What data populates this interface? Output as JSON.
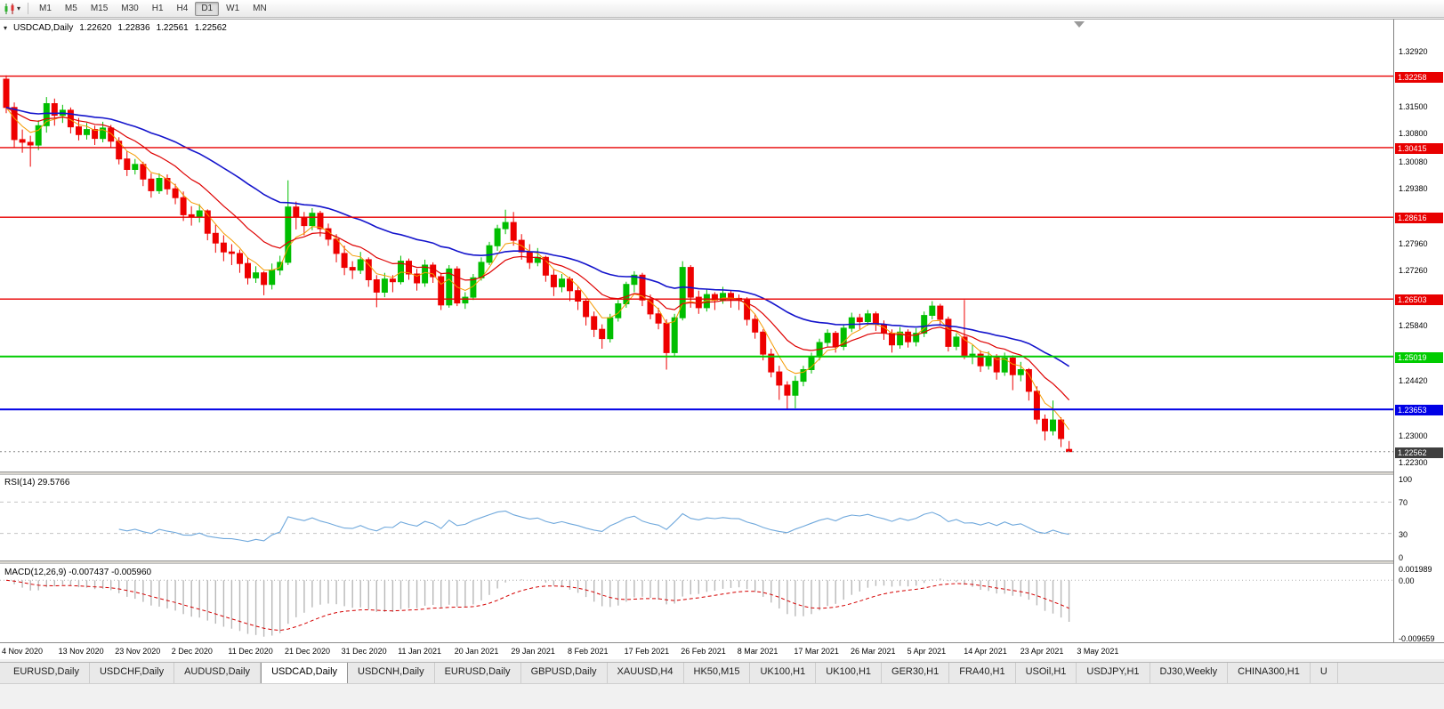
{
  "toolbar": {
    "timeframes": [
      "M1",
      "M5",
      "M15",
      "M30",
      "H1",
      "H4",
      "D1",
      "W1",
      "MN"
    ],
    "active_timeframe": "D1"
  },
  "chart": {
    "symbol": "USDCAD,Daily",
    "ohlc": {
      "open": "1.22620",
      "high": "1.22836",
      "low": "1.22561",
      "close": "1.22562"
    },
    "price_axis": {
      "labels": [
        "1.32920",
        "1.31500",
        "1.30800",
        "1.30080",
        "1.29380",
        "1.27960",
        "1.27260",
        "1.25840",
        "1.24420",
        "1.23000",
        "1.22300"
      ]
    },
    "hlines": [
      {
        "price": 1.32258,
        "label": "1.32258",
        "color": "#E80000",
        "width": 1.4
      },
      {
        "price": 1.30415,
        "label": "1.30415",
        "color": "#E80000",
        "width": 1.4
      },
      {
        "price": 1.28616,
        "label": "1.28616",
        "color": "#E80000",
        "width": 1.4
      },
      {
        "price": 1.26503,
        "label": "1.26503",
        "color": "#E80000",
        "width": 1.4
      },
      {
        "price": 1.25019,
        "label": "1.25019",
        "color": "#00CC00",
        "width": 2
      },
      {
        "price": 1.23653,
        "label": "1.23653",
        "color": "#0000E6",
        "width": 2
      }
    ],
    "current_price": {
      "value": 1.22562,
      "label": "1.22562",
      "color": "#3F3F3F"
    }
  },
  "indicators": {
    "rsi": {
      "label": "RSI(14) 29.5766",
      "period": 14,
      "last": 29.5766,
      "levels": [
        70,
        30
      ],
      "color": "#6FA8DC",
      "scale": [
        {
          "label": "100",
          "value": 100
        },
        {
          "label": "70",
          "value": 70
        },
        {
          "label": "30",
          "value": 30
        },
        {
          "label": "0",
          "value": 0
        }
      ]
    },
    "macd": {
      "label": "MACD(12,26,9) -0.007437 -0.005960",
      "fast": 12,
      "slow": 26,
      "signal_period": 9,
      "last_main": -0.007437,
      "last_signal": -0.00596,
      "signal_color": "#D40000",
      "hist_color": "#B8B8B8",
      "range": {
        "max": 0.001989,
        "min": -0.009659
      },
      "scale": [
        {
          "label": "0.001989",
          "value": 0.001989
        },
        {
          "label": "0.00",
          "value": 0
        },
        {
          "label": "-0.009659",
          "value": -0.009659
        }
      ]
    }
  },
  "time_axis": {
    "labels": [
      "4 Nov 2020",
      "13 Nov 2020",
      "23 Nov 2020",
      "2 Dec 2020",
      "11 Dec 2020",
      "21 Dec 2020",
      "31 Dec 2020",
      "11 Jan 2021",
      "20 Jan 2021",
      "29 Jan 2021",
      "8 Feb 2021",
      "17 Feb 2021",
      "26 Feb 2021",
      "8 Mar 2021",
      "17 Mar 2021",
      "26 Mar 2021",
      "5 Apr 2021",
      "14 Apr 2021",
      "23 Apr 2021",
      "3 May 2021"
    ]
  },
  "tabs": {
    "items": [
      "EURUSD,Daily",
      "USDCHF,Daily",
      "AUDUSD,Daily",
      "USDCAD,Daily",
      "USDCNH,Daily",
      "EURUSD,Daily",
      "GBPUSD,Daily",
      "XAUUSD,H4",
      "HK50,M15",
      "UK100,H1",
      "UK100,H1",
      "GER30,H1",
      "FRA40,H1",
      "USOil,H1",
      "USDJPY,H1",
      "DJ30,Weekly",
      "CHINA300,H1",
      "U"
    ],
    "active": "USDCAD,Daily"
  },
  "chart_data": {
    "type": "candlestick",
    "symbol": "USDCAD",
    "timeframe": "Daily",
    "view": {
      "price_min": 1.2205,
      "price_max": 1.3372
    },
    "colors": {
      "up": "#00BE00",
      "down": "#EE0000"
    },
    "moving_averages": [
      {
        "type": "ema",
        "period": 5,
        "color": "#F59A00",
        "width": 1
      },
      {
        "type": "ema",
        "period": 13,
        "color": "#DE0000",
        "width": 1.2
      },
      {
        "type": "ema",
        "period": 34,
        "color": "#1414CC",
        "width": 1.6
      }
    ],
    "ohlc": [
      [
        1.3218,
        1.3228,
        1.313,
        1.3145
      ],
      [
        1.3145,
        1.3158,
        1.3042,
        1.3062
      ],
      [
        1.3062,
        1.3088,
        1.3028,
        1.3055
      ],
      [
        1.3055,
        1.3072,
        1.2992,
        1.3048
      ],
      [
        1.3048,
        1.3112,
        1.3035,
        1.3098
      ],
      [
        1.3098,
        1.3172,
        1.308,
        1.3155
      ],
      [
        1.3155,
        1.3168,
        1.3098,
        1.3125
      ],
      [
        1.3125,
        1.3152,
        1.3105,
        1.3138
      ],
      [
        1.3138,
        1.3145,
        1.3078,
        1.3095
      ],
      [
        1.3095,
        1.3118,
        1.306,
        1.3075
      ],
      [
        1.3075,
        1.3105,
        1.3062,
        1.3088
      ],
      [
        1.3088,
        1.3098,
        1.3048,
        1.3065
      ],
      [
        1.3065,
        1.3108,
        1.3055,
        1.3092
      ],
      [
        1.3092,
        1.31,
        1.3042,
        1.3058
      ],
      [
        1.3058,
        1.3068,
        1.2998,
        1.3012
      ],
      [
        1.3012,
        1.3032,
        1.2968,
        1.2985
      ],
      [
        1.2985,
        1.3012,
        1.2972,
        1.2998
      ],
      [
        1.2998,
        1.3005,
        1.2942,
        1.296
      ],
      [
        1.296,
        1.2975,
        1.2912,
        1.293
      ],
      [
        1.293,
        1.2975,
        1.2922,
        1.2962
      ],
      [
        1.2962,
        1.2972,
        1.292,
        1.2935
      ],
      [
        1.2935,
        1.2948,
        1.2895,
        1.2912
      ],
      [
        1.2912,
        1.2928,
        1.2852,
        1.2868
      ],
      [
        1.2868,
        1.289,
        1.284,
        1.2862
      ],
      [
        1.2862,
        1.2895,
        1.2848,
        1.2878
      ],
      [
        1.2878,
        1.2882,
        1.2802,
        1.282
      ],
      [
        1.282,
        1.2842,
        1.277,
        1.2795
      ],
      [
        1.2795,
        1.2815,
        1.2748,
        1.2772
      ],
      [
        1.2772,
        1.2792,
        1.2738,
        1.2768
      ],
      [
        1.2768,
        1.2778,
        1.2718,
        1.2742
      ],
      [
        1.2742,
        1.2758,
        1.2688,
        1.2705
      ],
      [
        1.2705,
        1.2735,
        1.2692,
        1.2718
      ],
      [
        1.2718,
        1.2722,
        1.266,
        1.2688
      ],
      [
        1.2688,
        1.2742,
        1.2675,
        1.2725
      ],
      [
        1.2725,
        1.2762,
        1.2712,
        1.2745
      ],
      [
        1.2745,
        1.2957,
        1.2738,
        1.2888
      ],
      [
        1.2888,
        1.2902,
        1.283,
        1.2862
      ],
      [
        1.2862,
        1.2875,
        1.2815,
        1.284
      ],
      [
        1.284,
        1.2885,
        1.2828,
        1.2872
      ],
      [
        1.2872,
        1.2878,
        1.2812,
        1.2832
      ],
      [
        1.2832,
        1.2845,
        1.2788,
        1.2805
      ],
      [
        1.2805,
        1.2818,
        1.2745,
        1.2768
      ],
      [
        1.2768,
        1.2788,
        1.2712,
        1.2732
      ],
      [
        1.2732,
        1.2748,
        1.2702,
        1.2725
      ],
      [
        1.2725,
        1.2772,
        1.2715,
        1.2752
      ],
      [
        1.2752,
        1.2758,
        1.2682,
        1.27
      ],
      [
        1.27,
        1.2712,
        1.2629,
        1.2668
      ],
      [
        1.2668,
        1.2718,
        1.2655,
        1.2702
      ],
      [
        1.2702,
        1.2712,
        1.2668,
        1.2695
      ],
      [
        1.2695,
        1.2762,
        1.2688,
        1.2748
      ],
      [
        1.2748,
        1.2755,
        1.27,
        1.2715
      ],
      [
        1.2715,
        1.2728,
        1.2672,
        1.2692
      ],
      [
        1.2692,
        1.2752,
        1.2682,
        1.2738
      ],
      [
        1.2738,
        1.2745,
        1.2692,
        1.2708
      ],
      [
        1.2708,
        1.2718,
        1.2622,
        1.2635
      ],
      [
        1.2635,
        1.2738,
        1.2628,
        1.2728
      ],
      [
        1.2728,
        1.2735,
        1.2632,
        1.264
      ],
      [
        1.264,
        1.2668,
        1.2625,
        1.2655
      ],
      [
        1.2655,
        1.2715,
        1.2648,
        1.2705
      ],
      [
        1.2705,
        1.2758,
        1.2698,
        1.2745
      ],
      [
        1.2745,
        1.2798,
        1.2738,
        1.2788
      ],
      [
        1.2788,
        1.2842,
        1.2775,
        1.2832
      ],
      [
        1.2832,
        1.2881,
        1.2818,
        1.2848
      ],
      [
        1.2848,
        1.2875,
        1.2788,
        1.2802
      ],
      [
        1.2802,
        1.2818,
        1.2752,
        1.2772
      ],
      [
        1.2772,
        1.2792,
        1.2728,
        1.2745
      ],
      [
        1.2745,
        1.2782,
        1.2735,
        1.2758
      ],
      [
        1.2758,
        1.2762,
        1.2695,
        1.2712
      ],
      [
        1.2712,
        1.2728,
        1.2658,
        1.2682
      ],
      [
        1.2682,
        1.2715,
        1.2668,
        1.2702
      ],
      [
        1.2702,
        1.2708,
        1.2645,
        1.2672
      ],
      [
        1.2672,
        1.2682,
        1.2622,
        1.2645
      ],
      [
        1.2645,
        1.2652,
        1.2582,
        1.2605
      ],
      [
        1.2605,
        1.2618,
        1.2552,
        1.2572
      ],
      [
        1.2572,
        1.2585,
        1.2522,
        1.2548
      ],
      [
        1.2548,
        1.2612,
        1.2538,
        1.2602
      ],
      [
        1.2602,
        1.2648,
        1.2592,
        1.2638
      ],
      [
        1.2638,
        1.2695,
        1.2628,
        1.2688
      ],
      [
        1.2688,
        1.2722,
        1.2668,
        1.2712
      ],
      [
        1.2712,
        1.2718,
        1.2632,
        1.2648
      ],
      [
        1.2648,
        1.2662,
        1.2598,
        1.2612
      ],
      [
        1.2612,
        1.2628,
        1.2572,
        1.2588
      ],
      [
        1.2588,
        1.2598,
        1.2468,
        1.2512
      ],
      [
        1.2512,
        1.2612,
        1.2502,
        1.2602
      ],
      [
        1.2602,
        1.2748,
        1.2595,
        1.2732
      ],
      [
        1.2732,
        1.2738,
        1.2628,
        1.2655
      ],
      [
        1.2655,
        1.2672,
        1.2612,
        1.2628
      ],
      [
        1.2628,
        1.2675,
        1.2618,
        1.2662
      ],
      [
        1.2662,
        1.2668,
        1.2622,
        1.2648
      ],
      [
        1.2648,
        1.2682,
        1.2638,
        1.2665
      ],
      [
        1.2665,
        1.2672,
        1.2628,
        1.2652
      ],
      [
        1.2652,
        1.2662,
        1.2622,
        1.2648
      ],
      [
        1.2648,
        1.2655,
        1.2582,
        1.2598
      ],
      [
        1.2598,
        1.2612,
        1.2548,
        1.2565
      ],
      [
        1.2565,
        1.2572,
        1.2492,
        1.2508
      ],
      [
        1.2508,
        1.2522,
        1.2448,
        1.2462
      ],
      [
        1.2462,
        1.2478,
        1.239,
        1.2428
      ],
      [
        1.2428,
        1.2438,
        1.2365,
        1.2402
      ],
      [
        1.2402,
        1.2452,
        1.2368,
        1.2438
      ],
      [
        1.2438,
        1.2478,
        1.2425,
        1.2468
      ],
      [
        1.2468,
        1.2512,
        1.2458,
        1.2502
      ],
      [
        1.2502,
        1.2548,
        1.2492,
        1.2538
      ],
      [
        1.2538,
        1.2572,
        1.2528,
        1.2562
      ],
      [
        1.2562,
        1.2568,
        1.2512,
        1.2528
      ],
      [
        1.2528,
        1.2585,
        1.2518,
        1.2575
      ],
      [
        1.2575,
        1.2615,
        1.2565,
        1.2602
      ],
      [
        1.2602,
        1.2612,
        1.2572,
        1.2592
      ],
      [
        1.2592,
        1.2622,
        1.2582,
        1.2612
      ],
      [
        1.2612,
        1.2618,
        1.2568,
        1.2585
      ],
      [
        1.2585,
        1.2595,
        1.2545,
        1.2562
      ],
      [
        1.2562,
        1.2572,
        1.2512,
        1.2532
      ],
      [
        1.2532,
        1.2578,
        1.2522,
        1.2565
      ],
      [
        1.2565,
        1.2572,
        1.2525,
        1.254
      ],
      [
        1.254,
        1.2575,
        1.2528,
        1.2562
      ],
      [
        1.2562,
        1.2618,
        1.2552,
        1.2608
      ],
      [
        1.2608,
        1.2645,
        1.2598,
        1.2632
      ],
      [
        1.2632,
        1.2638,
        1.2585,
        1.2598
      ],
      [
        1.2598,
        1.2605,
        1.2515,
        1.2528
      ],
      [
        1.2528,
        1.2562,
        1.2518,
        1.2552
      ],
      [
        1.2552,
        1.2648,
        1.2495,
        1.2505
      ],
      [
        1.2505,
        1.2532,
        1.2482,
        1.2508
      ],
      [
        1.2508,
        1.2518,
        1.2462,
        1.2478
      ],
      [
        1.2478,
        1.2515,
        1.2468,
        1.2502
      ],
      [
        1.2502,
        1.2508,
        1.2442,
        1.2462
      ],
      [
        1.2462,
        1.2512,
        1.2452,
        1.2498
      ],
      [
        1.2498,
        1.2505,
        1.2415,
        1.2455
      ],
      [
        1.2455,
        1.2488,
        1.2438,
        1.2468
      ],
      [
        1.2468,
        1.2472,
        1.2388,
        1.2412
      ],
      [
        1.2412,
        1.2425,
        1.2328,
        1.234
      ],
      [
        1.234,
        1.2352,
        1.2285,
        1.231
      ],
      [
        1.231,
        1.2388,
        1.2298,
        1.2338
      ],
      [
        1.2338,
        1.2345,
        1.2268,
        1.229
      ],
      [
        1.2262,
        1.22836,
        1.22561,
        1.22562
      ]
    ]
  }
}
